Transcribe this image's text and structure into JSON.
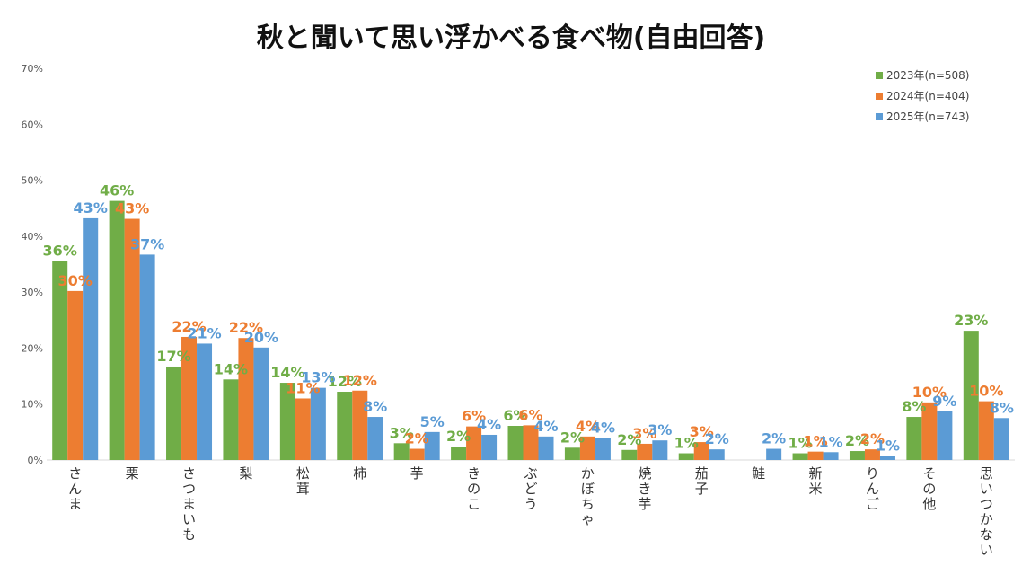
{
  "chart_data": {
    "type": "bar",
    "title": "秋と聞いて思い浮かべる食べ物(自由回答)",
    "ylim": [
      0,
      70
    ],
    "yticks": [
      "0%",
      "10%",
      "20%",
      "30%",
      "40%",
      "50%",
      "60%",
      "70%"
    ],
    "grid": false,
    "legend_position": "top-right",
    "categories": [
      "さんま",
      "栗",
      "さつまいも",
      "梨",
      "松茸",
      "柿",
      "芋",
      "きのこ",
      "ぶどう",
      "かぼちゃ",
      "焼き芋",
      "茄子",
      "鮭",
      "新米",
      "りんご",
      "その他",
      "思いつかない"
    ],
    "series": [
      {
        "name": "2023年(n=508)",
        "color": "#70ad47",
        "values": [
          35.6,
          46.3,
          16.7,
          14.4,
          13.8,
          12.2,
          3.0,
          2.4,
          6.1,
          2.2,
          1.8,
          1.2,
          null,
          1.2,
          1.6,
          7.7,
          23.1
        ],
        "labels": [
          "36%",
          "46%",
          "17%",
          "14%",
          "14%",
          "12%",
          "3%",
          "2%",
          "6%",
          "2%",
          "2%",
          "1%",
          "",
          "1%",
          "2%",
          "8%",
          "23%"
        ]
      },
      {
        "name": "2024年(n=404)",
        "color": "#ed7d31",
        "values": [
          30.2,
          43.1,
          22.0,
          21.8,
          11.0,
          12.4,
          2.0,
          6.0,
          6.2,
          4.2,
          2.9,
          3.2,
          null,
          1.5,
          1.9,
          10.3,
          10.5
        ],
        "labels": [
          "30%",
          "43%",
          "22%",
          "22%",
          "11%",
          "12%",
          "2%",
          "6%",
          "6%",
          "4%",
          "3%",
          "3%",
          "",
          "1%",
          "2%",
          "10%",
          "10%"
        ]
      },
      {
        "name": "2025年(n=743)",
        "color": "#5b9bd5",
        "values": [
          43.2,
          36.7,
          20.8,
          20.1,
          12.9,
          7.7,
          5.0,
          4.5,
          4.2,
          3.9,
          3.5,
          1.9,
          2.0,
          1.4,
          0.7,
          8.7,
          7.5
        ],
        "labels": [
          "43%",
          "37%",
          "21%",
          "20%",
          "13%",
          "8%",
          "5%",
          "4%",
          "4%",
          "4%",
          "3%",
          "2%",
          "2%",
          "1%",
          "1%",
          "9%",
          "8%"
        ]
      }
    ]
  }
}
